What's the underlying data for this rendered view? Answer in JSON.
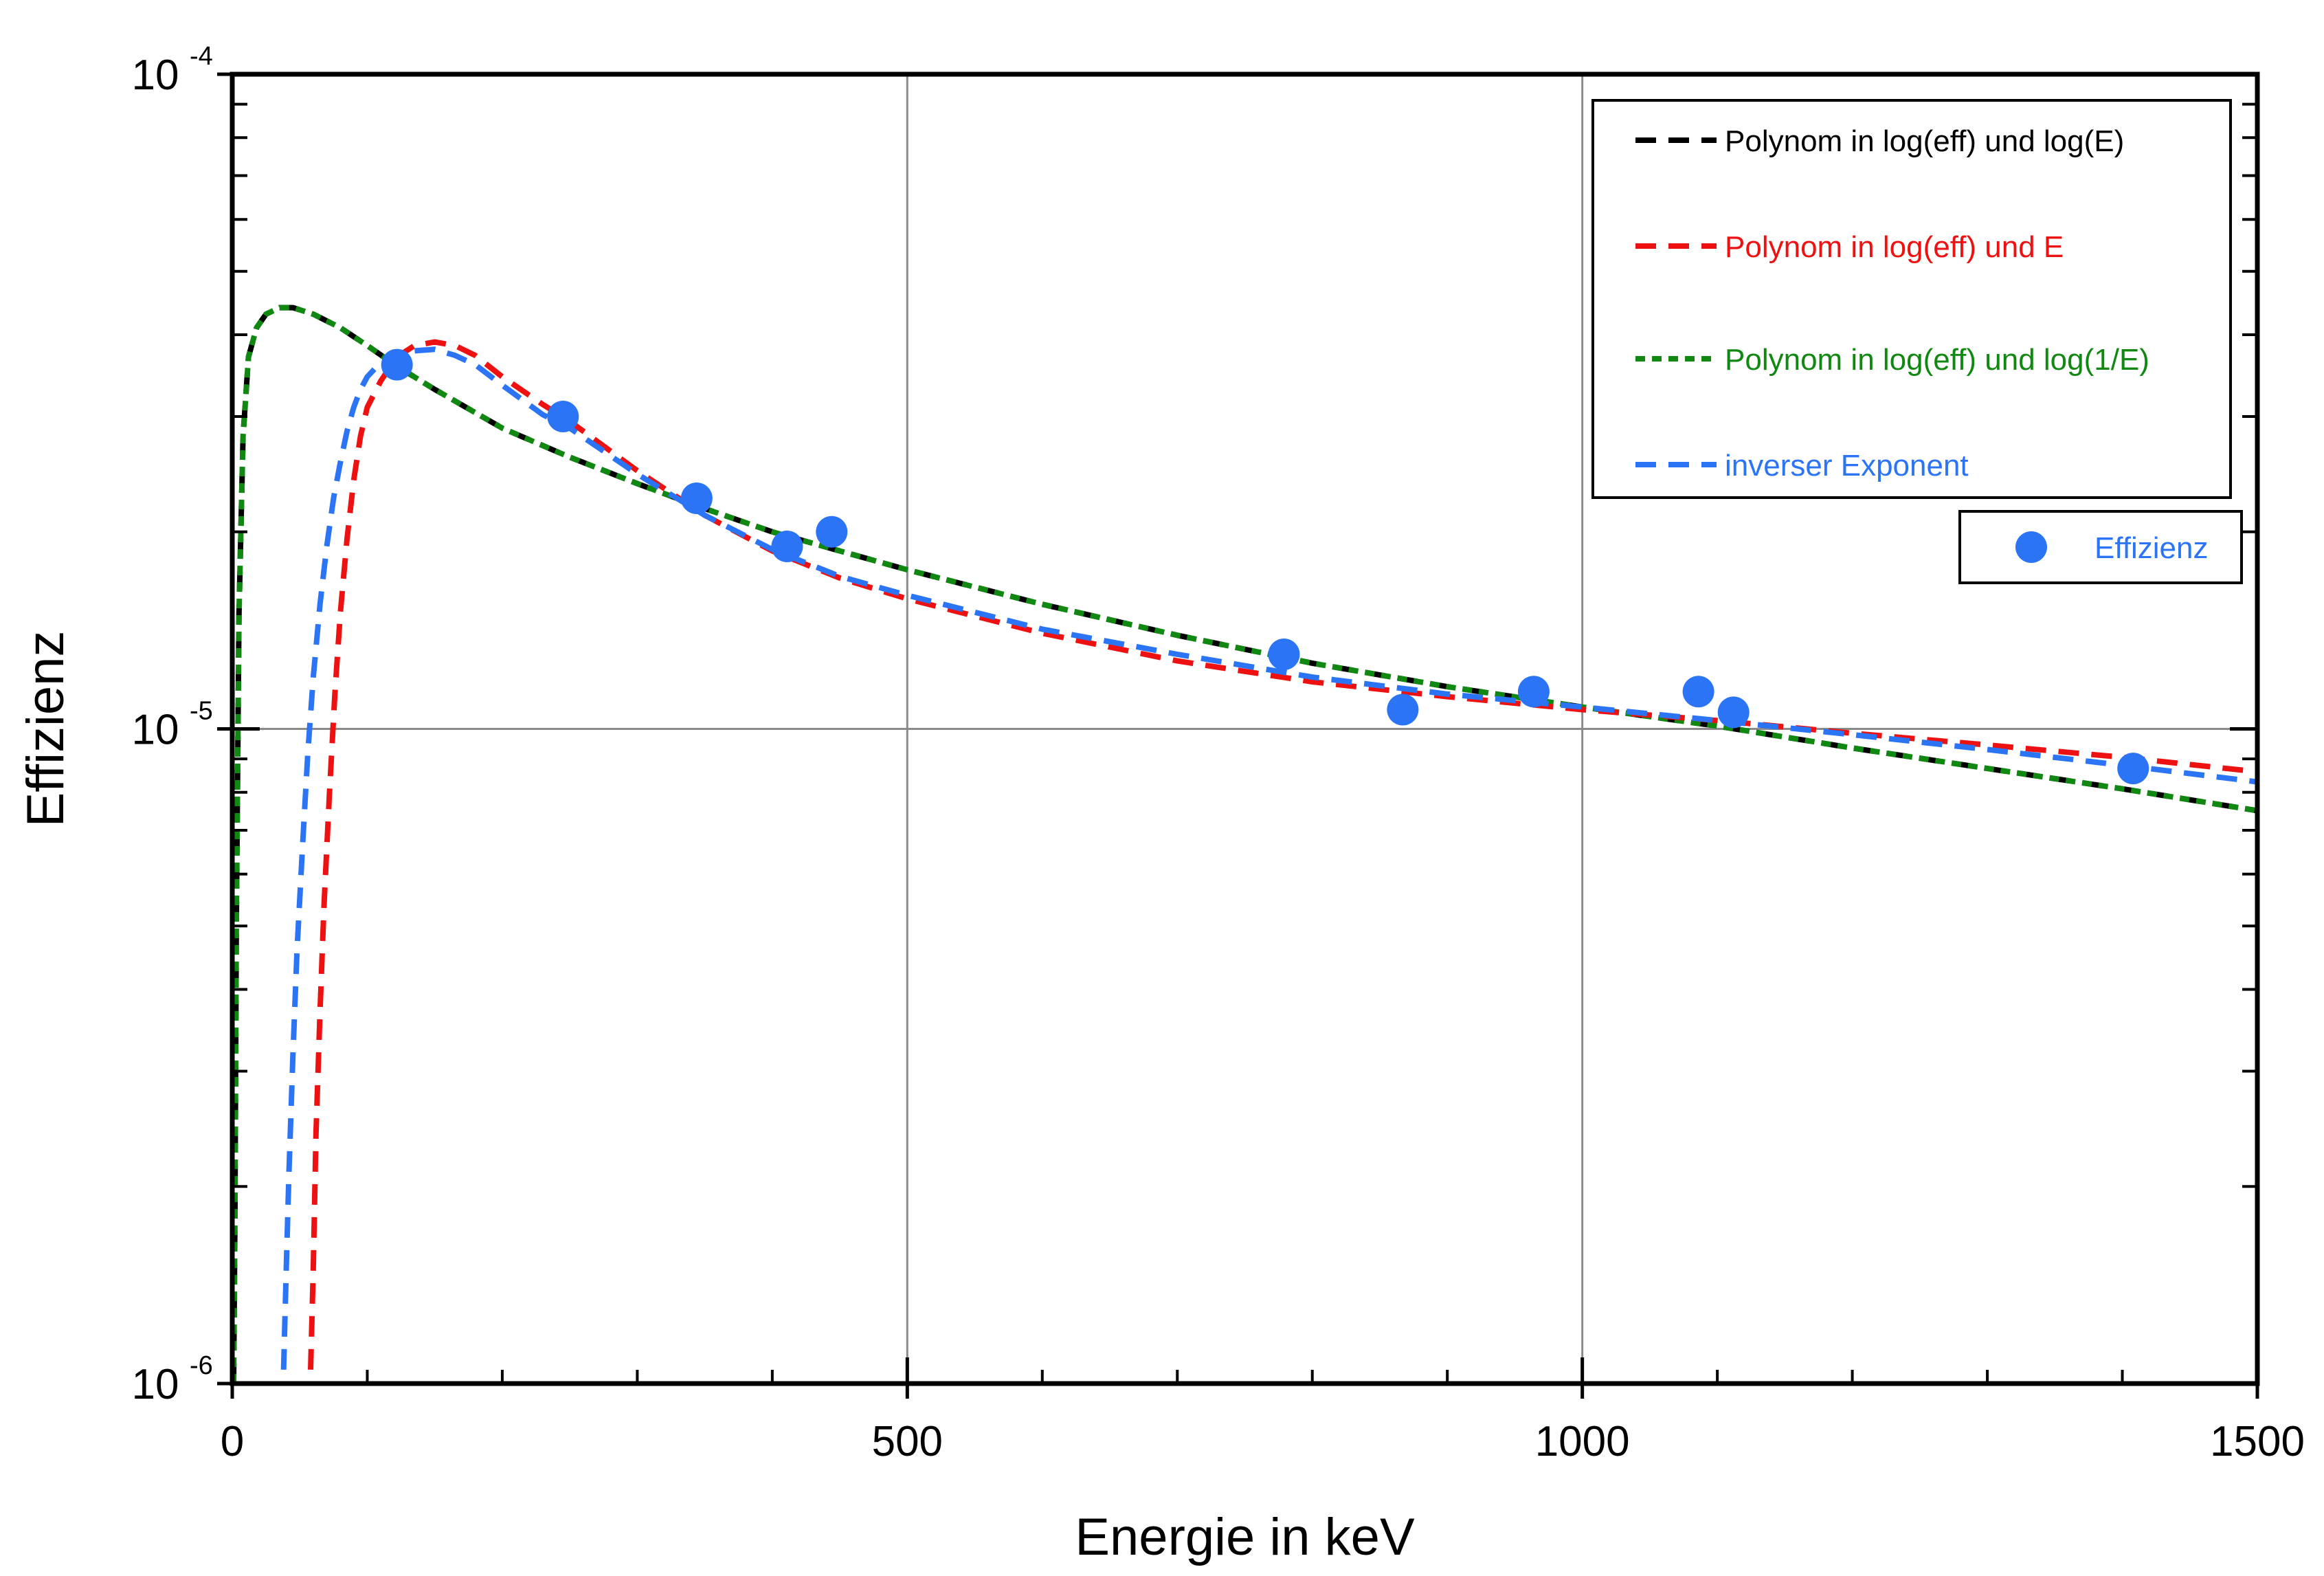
{
  "chart_data": {
    "type": "line",
    "xlabel": "Energie in keV",
    "ylabel": "Effizienz",
    "xlim": [
      0,
      1500
    ],
    "ylim": [
      1e-06,
      0.0001
    ],
    "yscale": "log",
    "grid": true,
    "xticks": [
      {
        "value": 0,
        "label": "0"
      },
      {
        "value": 500,
        "label": "500"
      },
      {
        "value": 1000,
        "label": "1000"
      },
      {
        "value": 1500,
        "label": "1500"
      }
    ],
    "yticks": [
      {
        "value": 1e-06,
        "base": "10",
        "exp": "-6"
      },
      {
        "value": 1e-05,
        "base": "10",
        "exp": "-5"
      },
      {
        "value": 0.0001,
        "base": "10",
        "exp": "-4"
      }
    ],
    "legend_position": "top-right",
    "series": [
      {
        "name": "Polynom in log(eff) und log(E)",
        "color": "#000000",
        "style": "long-dash",
        "x": [
          1,
          2,
          3,
          5,
          8,
          12,
          18,
          25,
          35,
          45,
          60,
          80,
          100,
          122,
          150,
          200,
          250,
          300,
          350,
          400,
          450,
          500,
          600,
          700,
          800,
          900,
          1000,
          1100,
          1200,
          1300,
          1400,
          1500
        ],
        "y": [
          1e-06,
          1.8e-06,
          5e-06,
          1.5e-05,
          2.8e-05,
          3.7e-05,
          4.1e-05,
          4.3e-05,
          4.4e-05,
          4.4e-05,
          4.3e-05,
          4.1e-05,
          3.85e-05,
          3.58e-05,
          3.3e-05,
          2.88e-05,
          2.6e-05,
          2.37e-05,
          2.17e-05,
          2e-05,
          1.87e-05,
          1.75e-05,
          1.55e-05,
          1.39e-05,
          1.26e-05,
          1.16e-05,
          1.08e-05,
          1.01e-05,
          9.35e-06,
          8.7e-06,
          8.1e-06,
          7.5e-06
        ]
      },
      {
        "name": "Polynom in log(eff) und E",
        "color": "#ee1111",
        "style": "long-dash",
        "x": [
          58,
          60,
          62,
          65,
          68,
          72,
          76,
          80,
          85,
          90,
          95,
          100,
          110,
          122,
          135,
          150,
          165,
          180,
          200,
          230,
          250,
          300,
          350,
          400,
          450,
          500,
          600,
          700,
          800,
          900,
          1000,
          1100,
          1200,
          1300,
          1400,
          1500
        ],
        "y": [
          1.05e-06,
          1.5e-06,
          2.4e-06,
          3.7e-06,
          5.4e-06,
          8e-06,
          1.13e-05,
          1.5e-05,
          1.95e-05,
          2.4e-05,
          2.8e-05,
          3.1e-05,
          3.4e-05,
          3.7e-05,
          3.85e-05,
          3.9e-05,
          3.85e-05,
          3.72e-05,
          3.45e-05,
          3.13e-05,
          2.95e-05,
          2.48e-05,
          2.12e-05,
          1.87e-05,
          1.7e-05,
          1.58e-05,
          1.4e-05,
          1.27e-05,
          1.18e-05,
          1.12e-05,
          1.07e-05,
          1.03e-05,
          9.85e-06,
          9.45e-06,
          9.05e-06,
          8.6e-06
        ]
      },
      {
        "name": "Polynom in log(eff) und log(1/E)",
        "color": "#118811",
        "style": "short-dash",
        "x": [
          1,
          2,
          3,
          5,
          8,
          12,
          18,
          25,
          35,
          45,
          60,
          80,
          100,
          122,
          150,
          200,
          250,
          300,
          350,
          400,
          450,
          500,
          600,
          700,
          800,
          900,
          1000,
          1100,
          1200,
          1300,
          1400,
          1500
        ],
        "y": [
          1e-06,
          1.8e-06,
          5e-06,
          1.5e-05,
          2.8e-05,
          3.7e-05,
          4.1e-05,
          4.3e-05,
          4.4e-05,
          4.4e-05,
          4.3e-05,
          4.1e-05,
          3.85e-05,
          3.58e-05,
          3.3e-05,
          2.88e-05,
          2.6e-05,
          2.37e-05,
          2.17e-05,
          2e-05,
          1.87e-05,
          1.75e-05,
          1.55e-05,
          1.39e-05,
          1.26e-05,
          1.16e-05,
          1.08e-05,
          1.01e-05,
          9.35e-06,
          8.7e-06,
          8.1e-06,
          7.5e-06
        ]
      },
      {
        "name": "inverser Exponent",
        "color": "#2a74f5",
        "style": "long-dash",
        "x": [
          38,
          40,
          42,
          45,
          48,
          52,
          56,
          60,
          65,
          70,
          75,
          80,
          85,
          90,
          95,
          100,
          110,
          122,
          135,
          150,
          165,
          180,
          200,
          230,
          250,
          300,
          350,
          400,
          450,
          500,
          600,
          700,
          800,
          900,
          1000,
          1100,
          1200,
          1300,
          1400,
          1500
        ],
        "y": [
          1.05e-06,
          1.5e-06,
          2.1e-06,
          3.2e-06,
          4.6e-06,
          6.6e-06,
          9.2e-06,
          1.2e-05,
          1.55e-05,
          1.9e-05,
          2.25e-05,
          2.55e-05,
          2.85e-05,
          3.1e-05,
          3.3e-05,
          3.45e-05,
          3.63e-05,
          3.72e-05,
          3.78e-05,
          3.8e-05,
          3.72e-05,
          3.6e-05,
          3.35e-05,
          3.02e-05,
          2.88e-05,
          2.45e-05,
          2.12e-05,
          1.88e-05,
          1.71e-05,
          1.6e-05,
          1.42e-05,
          1.3e-05,
          1.2e-05,
          1.13e-05,
          1.08e-05,
          1.03e-05,
          9.8e-06,
          9.3e-06,
          8.8e-06,
          8.3e-06
        ]
      },
      {
        "name": "Effizienz",
        "color": "#2a74f5",
        "style": "markers",
        "x": [
          122,
          245,
          344,
          411,
          444,
          779,
          867,
          964,
          1086,
          1112,
          1408
        ],
        "y": [
          3.6e-05,
          3e-05,
          2.25e-05,
          1.9e-05,
          2e-05,
          1.3e-05,
          1.07e-05,
          1.14e-05,
          1.14e-05,
          1.06e-05,
          8.7e-06
        ]
      }
    ]
  }
}
